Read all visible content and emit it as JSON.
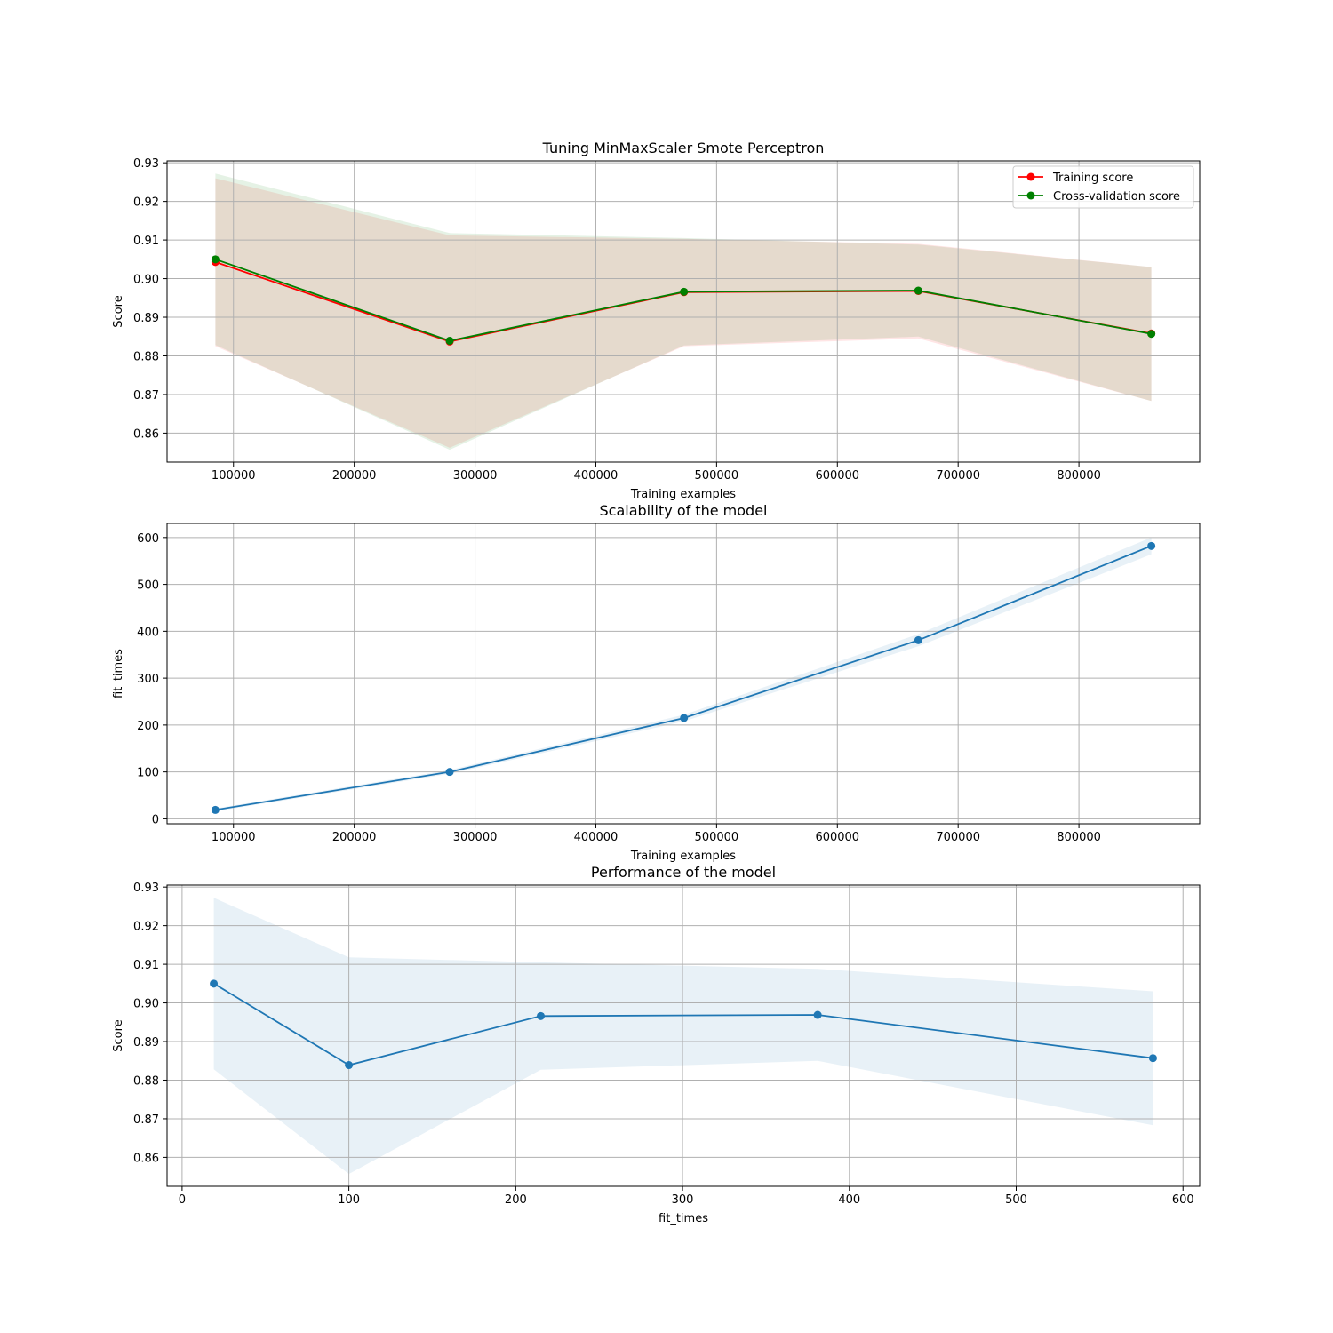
{
  "figure": {
    "background": "#ffffff"
  },
  "chart_data": [
    {
      "type": "line",
      "title": "Tuning MinMaxScaler Smote Perceptron",
      "xlabel": "Training examples",
      "ylabel": "Score",
      "xlim": [
        45000,
        900000
      ],
      "ylim": [
        0.8525,
        0.9305
      ],
      "xticks": [
        100000,
        200000,
        300000,
        400000,
        500000,
        600000,
        700000,
        800000
      ],
      "yticks": [
        0.86,
        0.87,
        0.88,
        0.89,
        0.9,
        0.91,
        0.92,
        0.93
      ],
      "ytick_format": 2,
      "grid": true,
      "legend": "upper right",
      "series": [
        {
          "name": "Training score",
          "color": "#ff0000",
          "x": [
            85000,
            279000,
            473000,
            667000,
            860000
          ],
          "y": [
            0.9043,
            0.8837,
            0.8965,
            0.8968,
            0.8858
          ],
          "band_upper": [
            0.926,
            0.9112,
            0.9103,
            0.909,
            0.903
          ],
          "band_lower": [
            0.8825,
            0.8562,
            0.8825,
            0.8845,
            0.8683
          ],
          "band_color": "#ff0000",
          "band_opacity": 0.1
        },
        {
          "name": "Cross-validation score",
          "color": "#008000",
          "x": [
            85000,
            279000,
            473000,
            667000,
            860000
          ],
          "y": [
            0.905,
            0.8839,
            0.8966,
            0.8969,
            0.8857
          ],
          "band_upper": [
            0.9272,
            0.9118,
            0.9105,
            0.9088,
            0.903
          ],
          "band_lower": [
            0.8828,
            0.8557,
            0.8827,
            0.885,
            0.8683
          ],
          "band_color": "#008000",
          "band_opacity": 0.1
        }
      ]
    },
    {
      "type": "line",
      "title": "Scalability of the model",
      "xlabel": "Training examples",
      "ylabel": "fit_times",
      "xlim": [
        45000,
        900000
      ],
      "ylim": [
        -10.6,
        630
      ],
      "xticks": [
        100000,
        200000,
        300000,
        400000,
        500000,
        600000,
        700000,
        800000
      ],
      "yticks": [
        0,
        100,
        200,
        300,
        400,
        500,
        600
      ],
      "ytick_format": 0,
      "grid": true,
      "series": [
        {
          "color": "#1f77b4",
          "x": [
            85000,
            279000,
            473000,
            667000,
            860000
          ],
          "y": [
            19,
            100,
            215,
            381,
            582
          ],
          "band_upper": [
            22,
            104,
            222,
            394,
            600
          ],
          "band_lower": [
            16,
            96,
            208,
            368,
            564
          ],
          "band_color": "#1f77b4",
          "band_opacity": 0.1
        }
      ]
    },
    {
      "type": "line",
      "title": "Performance of the model",
      "xlabel": "fit_times",
      "ylabel": "Score",
      "xlim": [
        -9,
        610
      ],
      "ylim": [
        0.8525,
        0.9305
      ],
      "xticks": [
        0,
        100,
        200,
        300,
        400,
        500,
        600
      ],
      "yticks": [
        0.86,
        0.87,
        0.88,
        0.89,
        0.9,
        0.91,
        0.92,
        0.93
      ],
      "ytick_format": 2,
      "grid": true,
      "series": [
        {
          "color": "#1f77b4",
          "x": [
            19,
            100,
            215,
            381,
            582
          ],
          "y": [
            0.905,
            0.8839,
            0.8966,
            0.8969,
            0.8857
          ],
          "band_upper": [
            0.9272,
            0.9118,
            0.9105,
            0.9088,
            0.903
          ],
          "band_lower": [
            0.8828,
            0.8557,
            0.8827,
            0.885,
            0.8683
          ],
          "band_color": "#1f77b4",
          "band_opacity": 0.1
        }
      ]
    }
  ]
}
